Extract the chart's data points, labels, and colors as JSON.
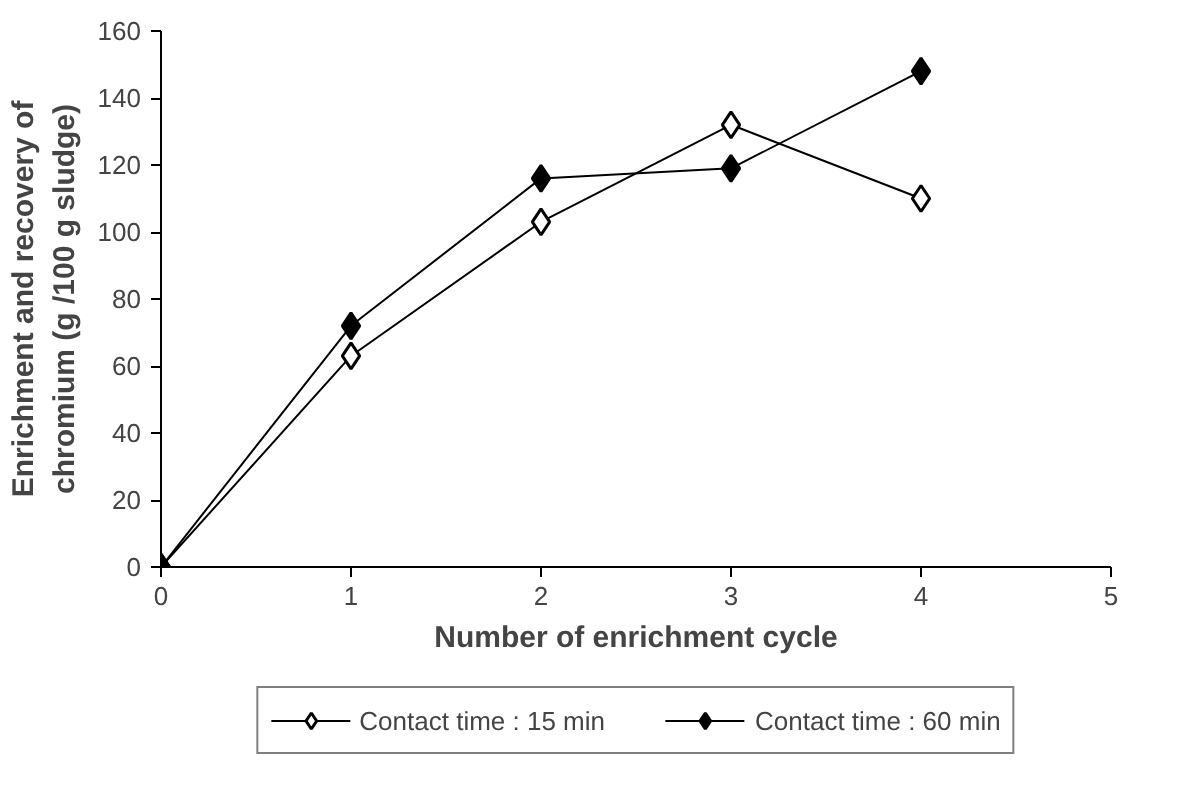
{
  "chart_data": {
    "type": "line",
    "xlabel": "Number of enrichment cycle",
    "ylabel": "Enrichment and recovery of\nchromium (g /100 g sludge)",
    "x": [
      0,
      1,
      2,
      3,
      4
    ],
    "xlim": [
      0,
      5
    ],
    "xticks": [
      0,
      1,
      2,
      3,
      4,
      5
    ],
    "ylim": [
      0,
      160
    ],
    "yticks": [
      0,
      20,
      40,
      60,
      80,
      100,
      120,
      140,
      160
    ],
    "grid": false,
    "legend": "bottom",
    "marker": "diamond",
    "line_style": "solid",
    "series": [
      {
        "name": "Contact time : 15 min",
        "color": "#000000",
        "values": [
          0,
          63,
          103,
          132,
          110
        ]
      },
      {
        "name": "Contact time : 60 min",
        "color": "#000000",
        "values": [
          0,
          72,
          116,
          119,
          148
        ]
      }
    ]
  }
}
